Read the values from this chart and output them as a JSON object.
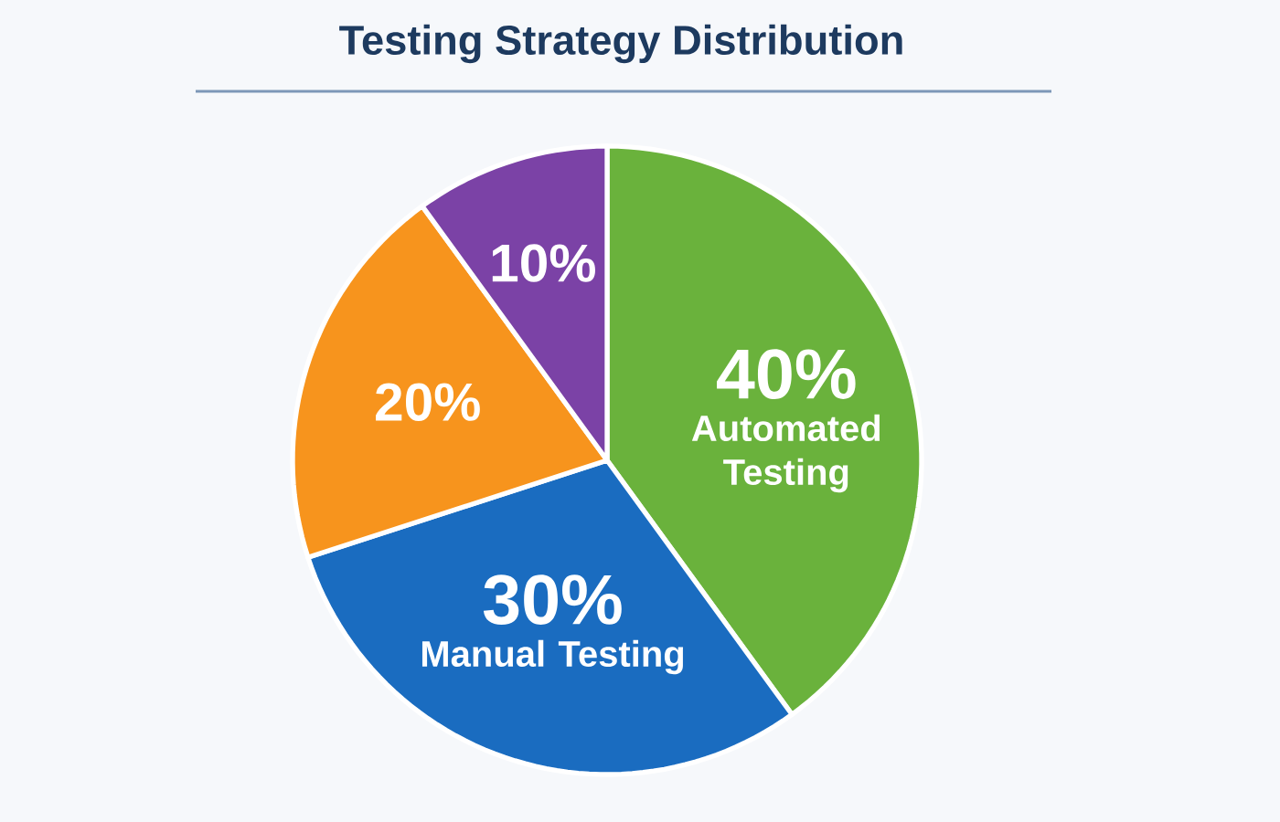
{
  "chart_data": {
    "type": "pie",
    "title": "Testing Strategy Distribution",
    "categories": [
      "Automated Testing",
      "Manual Testing",
      null,
      null
    ],
    "values": [
      40,
      30,
      20,
      10
    ],
    "colors": [
      "#6ab23c",
      "#1a6cc0",
      "#f7941d",
      "#7b42a6"
    ],
    "value_labels": [
      "40%",
      "30%",
      "20%",
      "10%"
    ]
  }
}
